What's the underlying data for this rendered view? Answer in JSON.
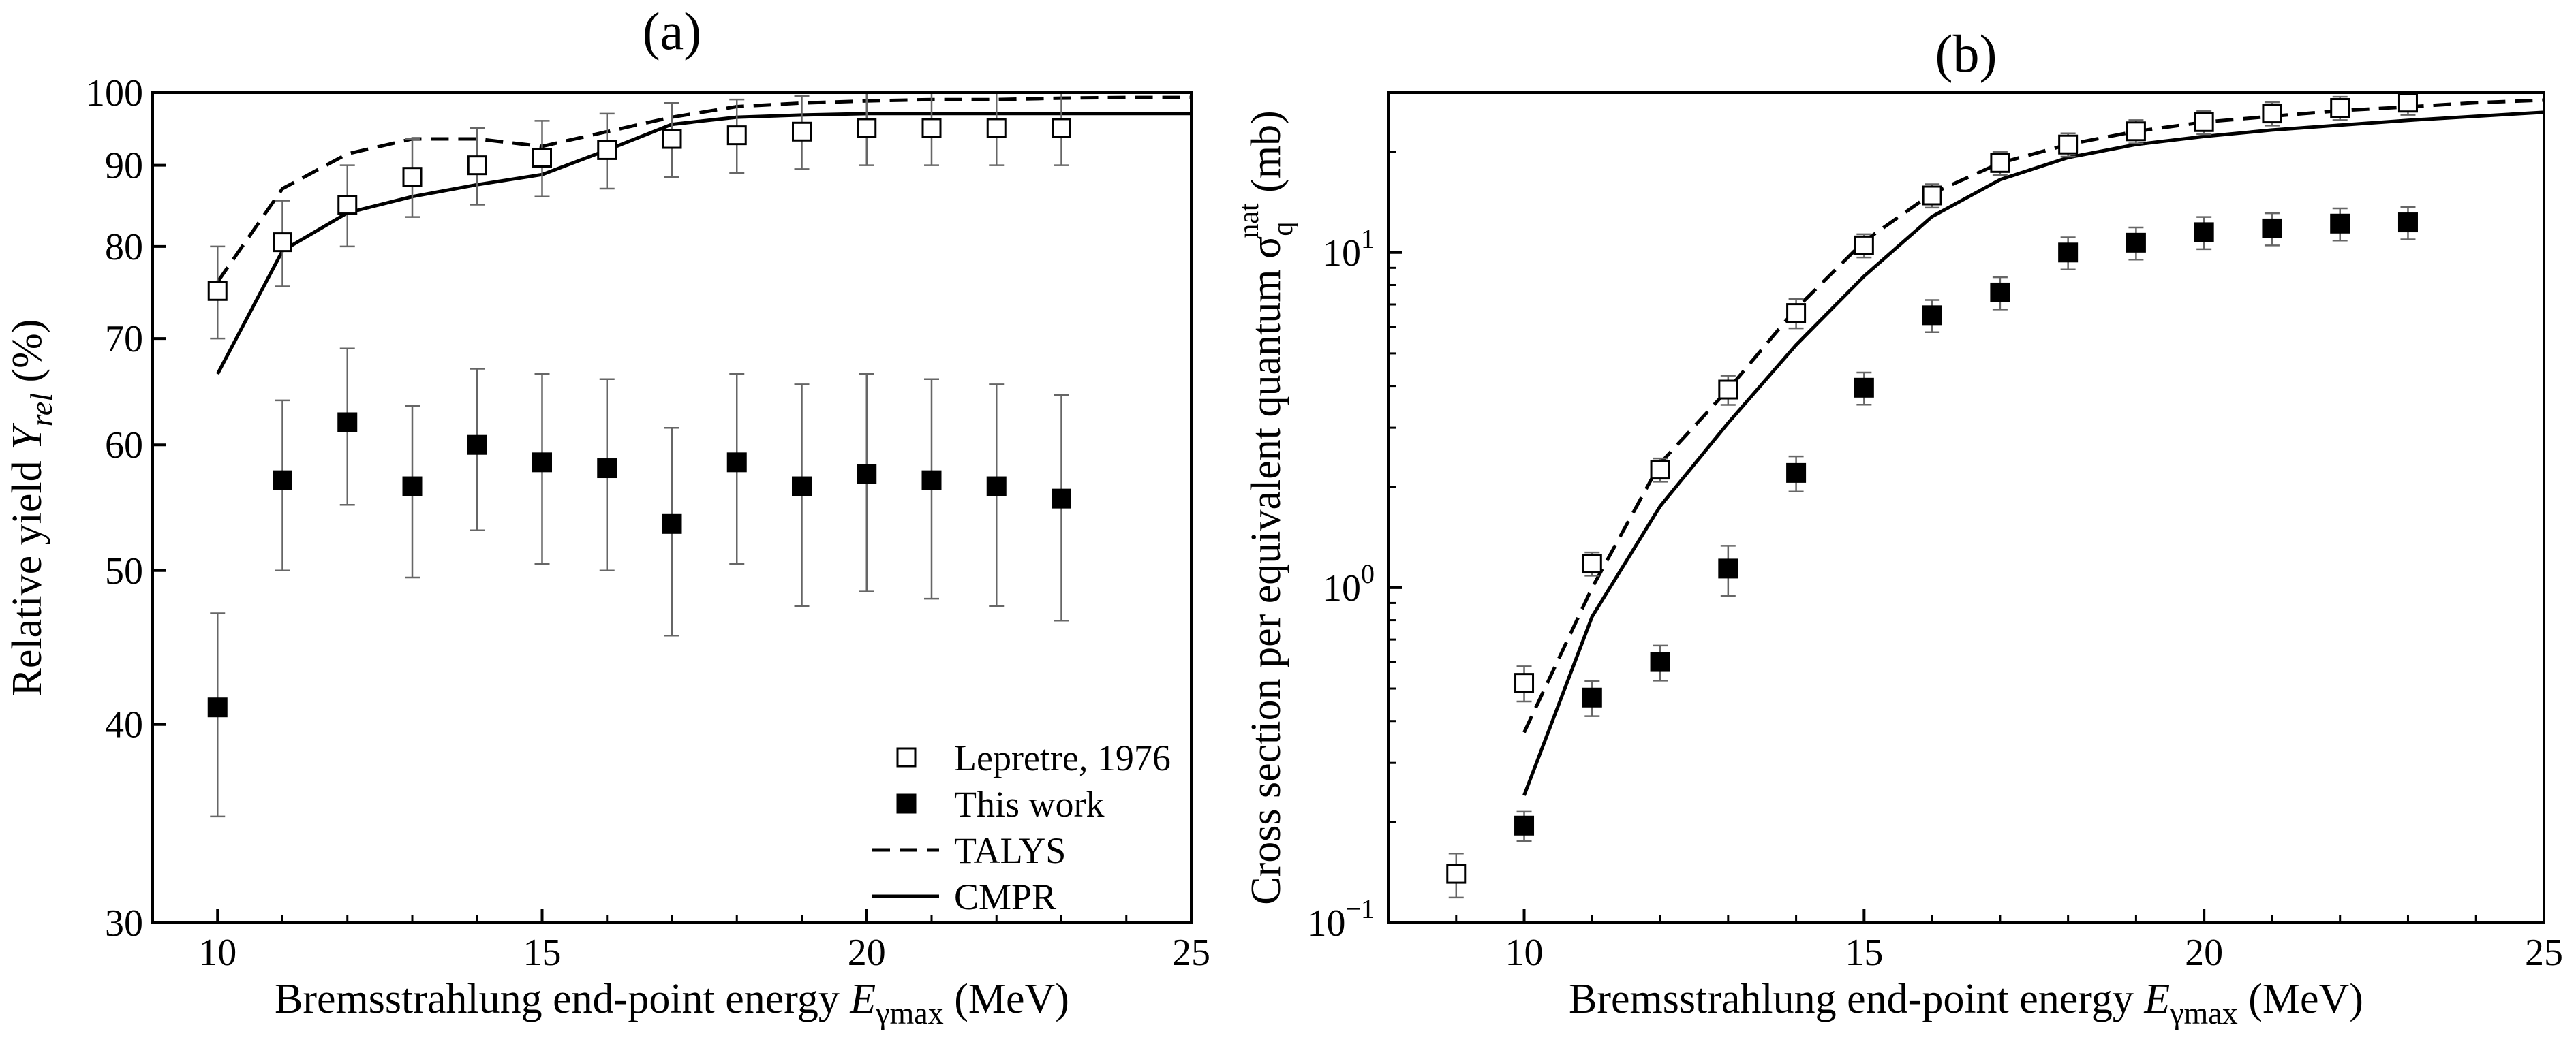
{
  "chart_data": [
    {
      "type": "scatter",
      "panel_label": "(a)",
      "xlabel": "Bremsstrahlung end-point energy ",
      "xlabel_var": "E",
      "xlabel_sub": "γmax",
      "xlabel_unit": " (MeV)",
      "ylabel": "Relative yield ",
      "ylabel_var": "Y",
      "ylabel_sub": "rel",
      "ylabel_unit": " (%)",
      "xlim": [
        9,
        25
      ],
      "ylim": [
        30,
        100
      ],
      "yscale": "log",
      "x_ticks": [
        10,
        15,
        20,
        25
      ],
      "y_ticks": [
        30,
        40,
        50,
        60,
        70,
        80,
        90,
        100
      ],
      "legend_position": "bottom-right",
      "legend": [
        {
          "label": "Lepretre, 1976",
          "marker": "open-square"
        },
        {
          "label": "This work",
          "marker": "filled-square"
        },
        {
          "label": "TALYS",
          "line": "dashed"
        },
        {
          "label": "CMPR",
          "line": "solid"
        }
      ],
      "series": [
        {
          "name": "Lepretre, 1976",
          "marker": "open-square",
          "x": [
            10,
            11,
            12,
            13,
            14,
            15,
            16,
            17,
            18,
            19,
            20,
            21,
            22,
            23
          ],
          "y": [
            75,
            80.5,
            85,
            88.5,
            90,
            91,
            92,
            93.5,
            94,
            94.5,
            95,
            95,
            95,
            95
          ],
          "yerr": [
            5,
            5,
            5,
            5,
            5,
            5,
            5,
            5,
            5,
            5,
            5,
            5,
            5,
            5
          ]
        },
        {
          "name": "This work",
          "marker": "filled-square",
          "x": [
            10,
            11,
            12,
            13,
            14,
            15,
            16,
            17,
            18,
            19,
            20,
            21,
            22,
            23
          ],
          "y": [
            41,
            57,
            62,
            56.5,
            60,
            58.5,
            58,
            53.5,
            58.5,
            56.5,
            57.5,
            57,
            56.5,
            55.5
          ],
          "yerr": [
            6,
            7,
            7,
            7,
            7,
            8,
            8,
            8,
            8,
            9,
            9,
            9,
            9,
            9
          ]
        },
        {
          "name": "TALYS",
          "line": "dashed",
          "x": [
            10,
            11,
            12,
            13,
            14,
            15,
            16,
            17,
            18,
            19,
            20,
            21,
            22,
            23,
            24,
            25
          ],
          "y": [
            76,
            87,
            91.5,
            93.5,
            93.5,
            92.5,
            94.5,
            96.5,
            98,
            98.5,
            98.8,
            99,
            99,
            99.2,
            99.3,
            99.3
          ]
        },
        {
          "name": "CMPR",
          "line": "solid",
          "x": [
            10,
            11,
            12,
            13,
            14,
            15,
            16,
            17,
            18,
            19,
            20,
            21,
            22,
            23,
            24,
            25
          ],
          "y": [
            66.5,
            79.5,
            84,
            86,
            87.5,
            88.8,
            92,
            95.5,
            96.5,
            96.8,
            97,
            97,
            97,
            97,
            97,
            97
          ]
        }
      ]
    },
    {
      "type": "scatter",
      "panel_label": "(b)",
      "xlabel": "Bremsstrahlung end-point energy ",
      "xlabel_var": "E",
      "xlabel_sub": "γmax",
      "xlabel_unit": " (MeV)",
      "ylabel": "Cross section per equivalent quantum σ",
      "ylabel_sub": "q",
      "ylabel_sup": "nat",
      "ylabel_unit": " (mb)",
      "xlim": [
        8,
        25
      ],
      "ylim": [
        0.1,
        30
      ],
      "yscale": "log",
      "x_ticks": [
        10,
        15,
        20,
        25
      ],
      "y_ticks": [
        {
          "value": 0.1,
          "base": "10",
          "exp": "−1"
        },
        {
          "value": 1,
          "base": "10",
          "exp": "0"
        },
        {
          "value": 10,
          "base": "10",
          "exp": "1"
        }
      ],
      "series": [
        {
          "name": "Lepretre, 1976",
          "marker": "open-square",
          "x": [
            9,
            10,
            11,
            12,
            13,
            14,
            15,
            16,
            17,
            18,
            19,
            20,
            21,
            22,
            23
          ],
          "y": [
            0.14,
            0.52,
            1.18,
            2.25,
            3.9,
            6.6,
            10.5,
            14.8,
            18.5,
            21,
            23,
            24.5,
            26,
            27,
            28
          ],
          "yerr_frac": [
            0.15,
            0.12,
            0.08,
            0.08,
            0.1,
            0.1,
            0.08,
            0.08,
            0.08,
            0.08,
            0.08,
            0.08,
            0.08,
            0.08,
            0.08
          ]
        },
        {
          "name": "This work",
          "marker": "filled-square",
          "x": [
            10,
            11,
            12,
            13,
            14,
            15,
            16,
            17,
            18,
            19,
            20,
            21,
            22,
            23
          ],
          "y": [
            0.195,
            0.47,
            0.6,
            1.14,
            2.2,
            3.95,
            6.5,
            7.6,
            10,
            10.7,
            11.5,
            11.8,
            12.2,
            12.3
          ],
          "yerr_frac": [
            0.1,
            0.12,
            0.12,
            0.17,
            0.12,
            0.11,
            0.11,
            0.11,
            0.11,
            0.11,
            0.11,
            0.11,
            0.11,
            0.11
          ]
        },
        {
          "name": "TALYS",
          "line": "dashed",
          "x": [
            10,
            11,
            12,
            13,
            14,
            15,
            16,
            17,
            18,
            19,
            20,
            21,
            22,
            23,
            24,
            25
          ],
          "y": [
            0.37,
            1.0,
            2.35,
            3.9,
            6.8,
            10.8,
            15.0,
            18.5,
            21,
            23,
            24.5,
            25.5,
            26.5,
            27.2,
            28,
            28.5
          ]
        },
        {
          "name": "CMPR",
          "line": "solid",
          "x": [
            10,
            11,
            12,
            13,
            14,
            15,
            16,
            17,
            18,
            19,
            20,
            21,
            22,
            23,
            24,
            25
          ],
          "y": [
            0.24,
            0.82,
            1.75,
            3.1,
            5.3,
            8.5,
            12.8,
            16.5,
            19.2,
            21,
            22.2,
            23.2,
            24,
            24.8,
            25.5,
            26.2
          ]
        }
      ]
    }
  ]
}
